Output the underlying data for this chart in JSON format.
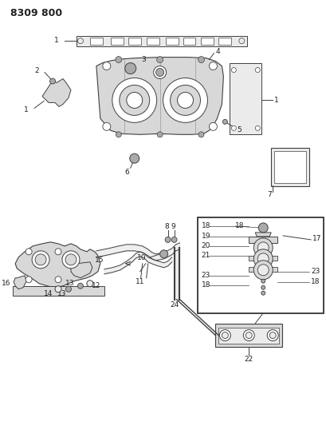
{
  "title": "8309 800",
  "bg_color": "#ffffff",
  "line_color": "#404040",
  "gray_fill": "#d8d8d8",
  "light_gray": "#ebebeb",
  "dark_gray": "#aaaaaa",
  "title_fontsize": 9,
  "label_fontsize": 6.5,
  "figsize": [
    4.1,
    5.33
  ],
  "dpi": 100
}
